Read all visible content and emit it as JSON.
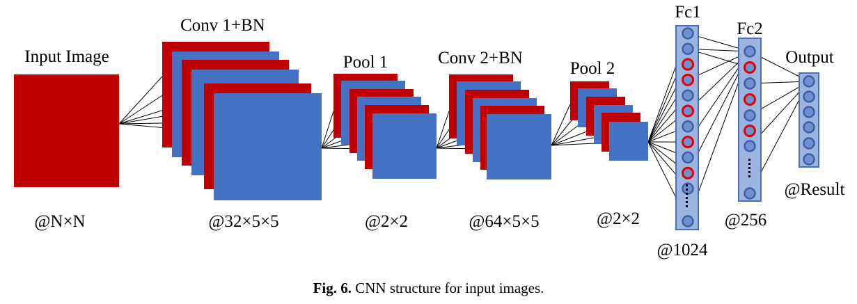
{
  "labels": {
    "input": "Input Image",
    "input_dim": "@N×N",
    "conv1": "Conv 1+BN",
    "conv1_dim": "@32×5×5",
    "pool1": "Pool 1",
    "pool1_dim": "@2×2",
    "conv2": "Conv 2+BN",
    "conv2_dim": "@64×5×5",
    "pool2": "Pool 2",
    "pool2_dim": "@2×2",
    "fc1": "Fc1",
    "fc1_dim": "@1024",
    "fc2": "Fc2",
    "fc2_dim": "@256",
    "output": "Output",
    "output_dim": "@Result"
  },
  "caption": {
    "prefix": "Fig. 6.",
    "text": "CNN structure for input images."
  },
  "colors": {
    "red": "#c00000",
    "blue": "#4472c4",
    "fc_panel": "#9db4e0",
    "node_fill": "#6f8fcf",
    "node_stroke": "#3b5fa8",
    "dropout_stroke": "#e00000"
  }
}
